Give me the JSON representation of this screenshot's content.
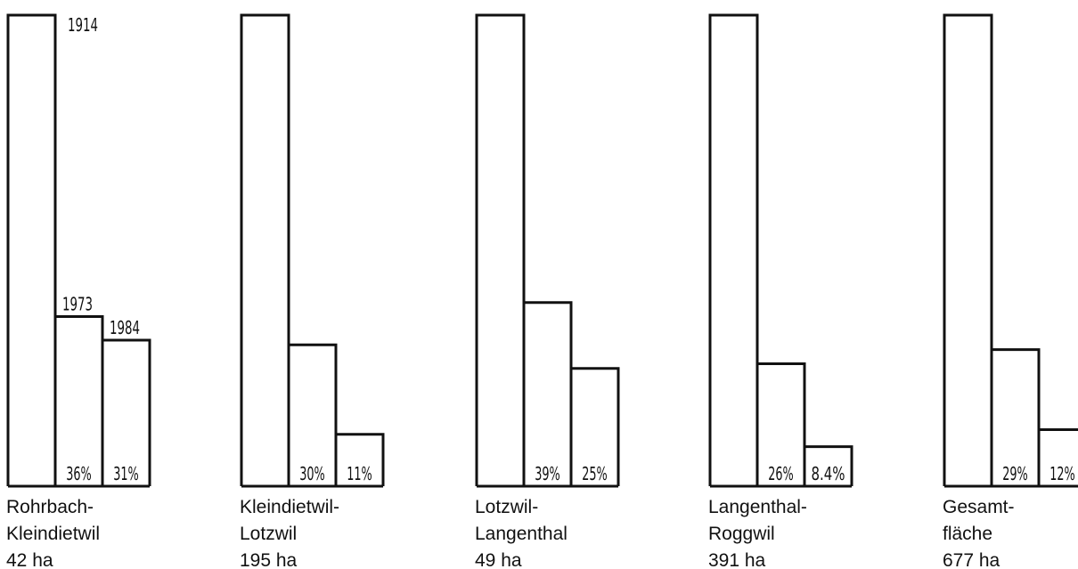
{
  "chart_data": {
    "type": "bar",
    "series_names": [
      "1914",
      "1973",
      "1984"
    ],
    "groups": [
      {
        "label_lines": [
          "Rohrbach-",
          "Kleindietwil",
          "42 ha"
        ],
        "values": [
          100,
          36,
          31
        ],
        "value_labels": [
          "",
          "36%",
          "31%"
        ],
        "year_labels": [
          "1914",
          "1973",
          "1984"
        ]
      },
      {
        "label_lines": [
          "Kleindietwil-",
          "Lotzwil",
          "195 ha"
        ],
        "values": [
          100,
          30,
          11
        ],
        "value_labels": [
          "",
          "30%",
          "11%"
        ],
        "year_labels": [
          "",
          "",
          ""
        ]
      },
      {
        "label_lines": [
          "Lotzwil-",
          "Langenthal",
          "49 ha"
        ],
        "values": [
          100,
          39,
          25
        ],
        "value_labels": [
          "",
          "39%",
          "25%"
        ],
        "year_labels": [
          "",
          "",
          ""
        ]
      },
      {
        "label_lines": [
          "Langenthal-",
          "Roggwil",
          "391 ha"
        ],
        "values": [
          100,
          26,
          8.4
        ],
        "value_labels": [
          "",
          "26%",
          "8.4%"
        ],
        "year_labels": [
          "",
          "",
          ""
        ]
      },
      {
        "label_lines": [
          "Gesamt-",
          "fläche",
          "677 ha"
        ],
        "values": [
          100,
          29,
          12
        ],
        "value_labels": [
          "",
          "29%",
          "12%"
        ],
        "year_labels": [
          "",
          "",
          ""
        ]
      }
    ],
    "ylim": [
      0,
      100
    ],
    "grid": false,
    "legend": "none",
    "colors": {
      "bar_fill": "#ffffff",
      "bar_stroke": "#111111",
      "text": "#111111"
    }
  }
}
